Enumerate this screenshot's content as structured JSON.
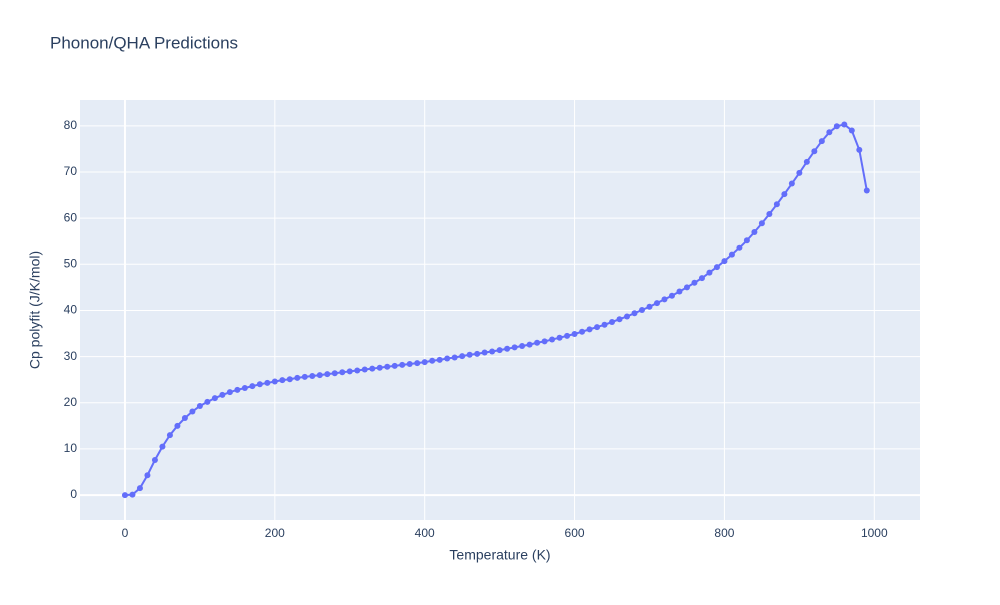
{
  "chart_data": {
    "type": "line",
    "title": "Phonon/QHA Predictions",
    "x_label": "Temperature (K)",
    "y_label": "Cp polyfit (J/K/mol)",
    "x": [
      0,
      10,
      20,
      30,
      40,
      50,
      60,
      70,
      80,
      90,
      100,
      110,
      120,
      130,
      140,
      150,
      160,
      170,
      180,
      190,
      200,
      210,
      220,
      230,
      240,
      250,
      260,
      270,
      280,
      290,
      300,
      310,
      320,
      330,
      340,
      350,
      360,
      370,
      380,
      390,
      400,
      410,
      420,
      430,
      440,
      450,
      460,
      470,
      480,
      490,
      500,
      510,
      520,
      530,
      540,
      550,
      560,
      570,
      580,
      590,
      600,
      610,
      620,
      630,
      640,
      650,
      660,
      670,
      680,
      690,
      700,
      710,
      720,
      730,
      740,
      750,
      760,
      770,
      780,
      790,
      800,
      810,
      820,
      830,
      840,
      850,
      860,
      870,
      880,
      890,
      900,
      910,
      920,
      930,
      940,
      950,
      960,
      970,
      980,
      990
    ],
    "values": [
      0,
      0.1,
      1.5,
      4.3,
      7.6,
      10.5,
      13,
      15,
      16.7,
      18.1,
      19.3,
      20.2,
      21,
      21.7,
      22.3,
      22.8,
      23.2,
      23.6,
      24,
      24.3,
      24.6,
      24.9,
      25.1,
      25.4,
      25.6,
      25.8,
      26,
      26.2,
      26.4,
      26.6,
      26.8,
      27,
      27.2,
      27.4,
      27.6,
      27.8,
      28,
      28.2,
      28.4,
      28.6,
      28.8,
      29.1,
      29.3,
      29.6,
      29.8,
      30.1,
      30.4,
      30.6,
      30.9,
      31.1,
      31.4,
      31.7,
      32,
      32.3,
      32.6,
      33,
      33.3,
      33.7,
      34.1,
      34.5,
      34.9,
      35.4,
      35.9,
      36.4,
      36.9,
      37.5,
      38.1,
      38.7,
      39.4,
      40.1,
      40.8,
      41.6,
      42.4,
      43.2,
      44.1,
      45,
      46,
      47,
      48.2,
      49.4,
      50.7,
      52.1,
      53.6,
      55.2,
      57,
      58.9,
      60.9,
      63,
      65.2,
      67.5,
      69.8,
      72.2,
      74.5,
      76.7,
      78.6,
      79.9,
      80.3,
      79,
      74.8,
      66
    ],
    "color": "#636efa",
    "xlim": [
      -60,
      1061
    ],
    "ylim": [
      -5.4,
      85.6
    ],
    "xticks": [
      0,
      200,
      400,
      600,
      800,
      1000
    ],
    "yticks": [
      0,
      10,
      20,
      30,
      40,
      50,
      60,
      70,
      80
    ],
    "grid": true
  }
}
